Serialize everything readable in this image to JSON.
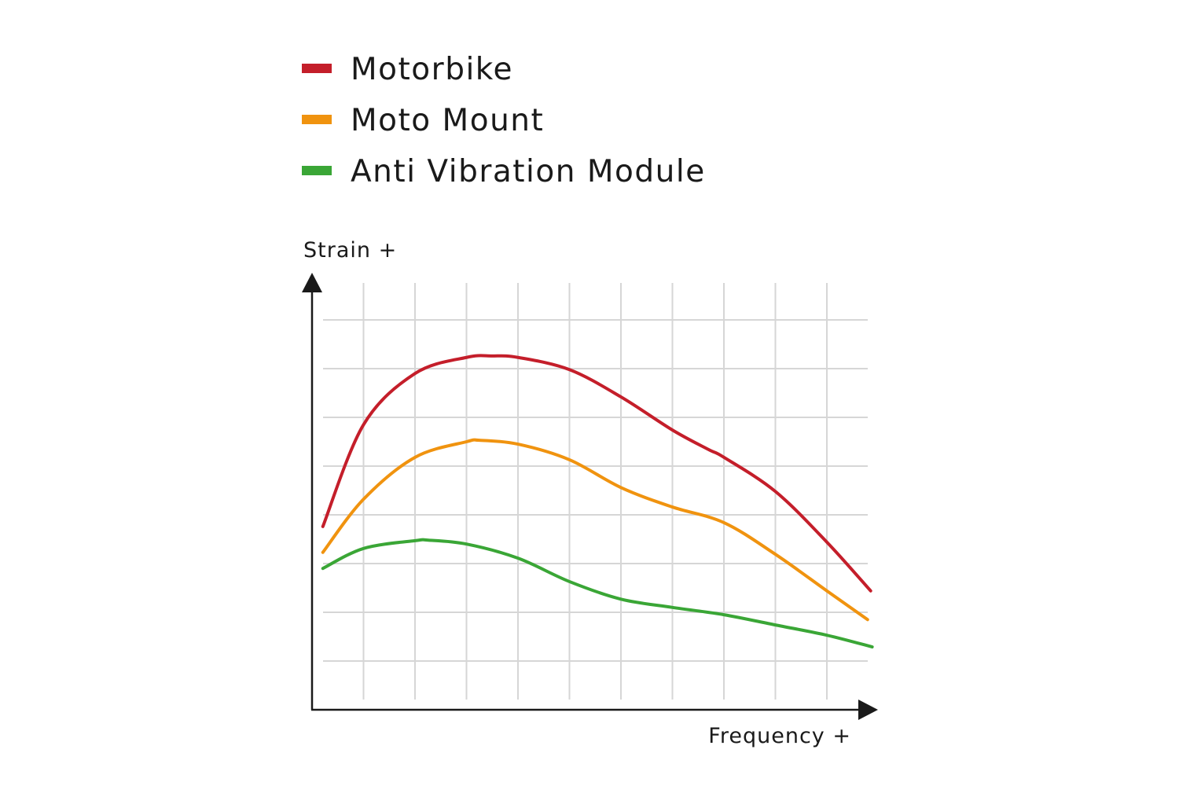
{
  "chart_data": {
    "type": "line",
    "title": "",
    "xlabel": "Frequency +",
    "ylabel": "Strain +",
    "xlim": [
      0,
      11
    ],
    "ylim": [
      0,
      9
    ],
    "grid": true,
    "legend_position": "top-left",
    "series": [
      {
        "name": "Motorbike",
        "color": "#c41e2a",
        "x": [
          0.21,
          1.0,
          2.0,
          3.0,
          3.5,
          4.0,
          5.0,
          6.0,
          7.0,
          7.7,
          8.0,
          9.0,
          10.0,
          10.85
        ],
        "y": [
          3.76,
          5.85,
          6.9,
          7.23,
          7.26,
          7.23,
          6.98,
          6.42,
          5.74,
          5.34,
          5.18,
          4.48,
          3.44,
          2.44
        ]
      },
      {
        "name": "Moto Mount",
        "color": "#f0930f",
        "x": [
          0.21,
          1.0,
          2.0,
          3.0,
          3.25,
          4.0,
          5.0,
          6.0,
          7.0,
          8.0,
          9.0,
          10.0,
          10.79
        ],
        "y": [
          3.23,
          4.32,
          5.18,
          5.5,
          5.53,
          5.45,
          5.13,
          4.56,
          4.16,
          3.84,
          3.19,
          2.44,
          1.85
        ]
      },
      {
        "name": "Anti Vibration Module",
        "color": "#3aa636",
        "x": [
          0.21,
          1.0,
          2.0,
          2.26,
          3.0,
          4.0,
          5.0,
          6.0,
          7.0,
          8.0,
          9.0,
          10.0,
          10.88
        ],
        "y": [
          2.9,
          3.31,
          3.47,
          3.48,
          3.4,
          3.11,
          2.63,
          2.27,
          2.1,
          1.95,
          1.74,
          1.53,
          1.29
        ]
      }
    ]
  }
}
